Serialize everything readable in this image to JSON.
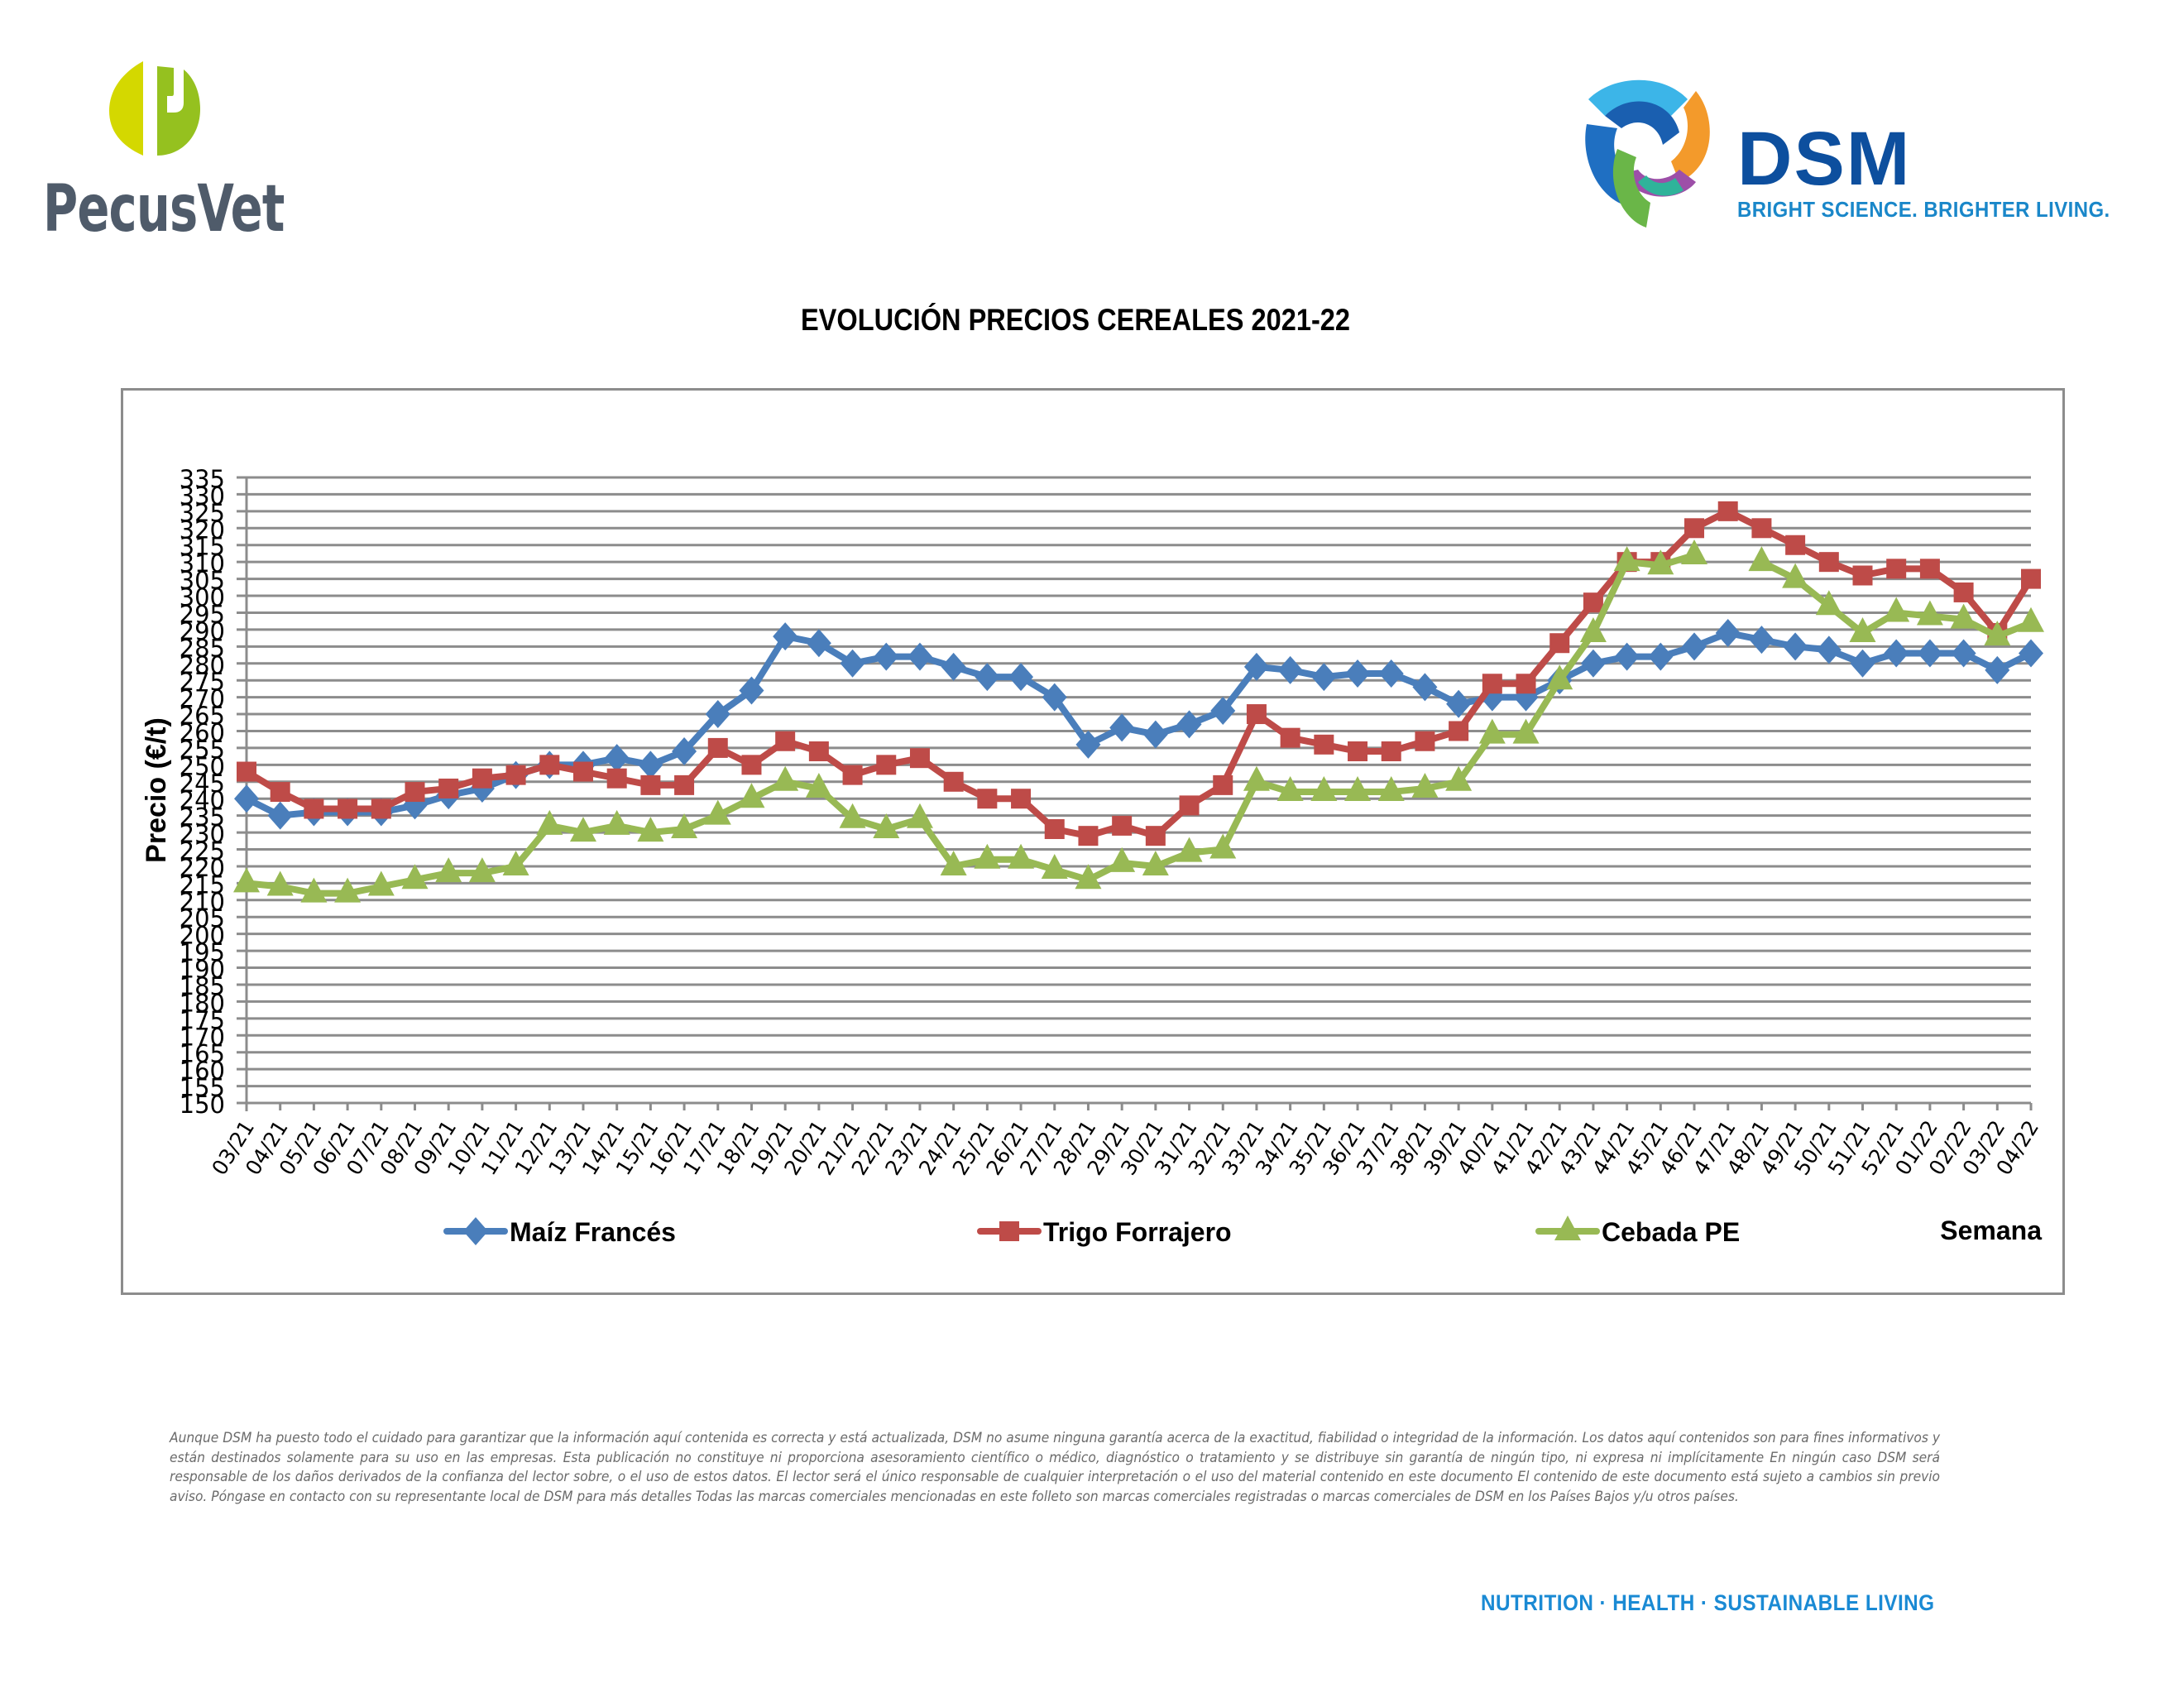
{
  "header": {
    "left_logo": {
      "brand": "PecusVet",
      "icon": "pecusvet-p-icon",
      "colors": {
        "left": "#d4d800",
        "right": "#95c11f",
        "text": "#4f5b6a"
      }
    },
    "right_logo": {
      "brand": "DSM",
      "tagline": "BRIGHT SCIENCE. BRIGHTER LIVING.",
      "icon": "dsm-swirl-icon",
      "colors": {
        "brand": "#0d4f9e",
        "tagline": "#1a87c9"
      }
    }
  },
  "footer": {
    "disclaimer": "Aunque DSM ha puesto todo el cuidado para garantizar que la información aquí contenida es correcta y está actualizada, DSM no asume ninguna garantía acerca de la exactitud, fiabilidad o integridad de la información. Los datos aquí contenidos son para fines informativos y están destinados solamente para su uso en las empresas. Esta publicación no constituye ni proporciona asesoramiento científico o médico, diagnóstico o tratamiento y se distribuye sin garantía de ningún tipo, ni expresa ni implícitamente En ningún caso DSM será responsable de los daños derivados de la confianza del lector sobre, o el uso de estos datos. El lector será el único responsable de cualquier interpretación o el uso del material contenido en este documento El contenido de este documento está sujeto a cambios sin previo aviso. Póngase en contacto con su representante local de DSM para más detalles Todas las marcas comerciales mencionadas en este folleto son marcas comerciales registradas o marcas comerciales de DSM en los Países Bajos y/u otros países.",
    "tagline": "NUTRITION  ·  HEALTH  ·  SUSTAINABLE LIVING"
  },
  "chart_data": {
    "type": "line",
    "title": "EVOLUCIÓN PRECIOS CEREALES 2021-22",
    "xlabel": "Semana",
    "ylabel": "Precio (€/t)",
    "ylim": [
      150,
      335
    ],
    "ytick_step": 5,
    "grid": true,
    "legend_position": "bottom",
    "categories": [
      "03/21",
      "04/21",
      "05/21",
      "06/21",
      "07/21",
      "08/21",
      "09/21",
      "10/21",
      "11/21",
      "12/21",
      "13/21",
      "14/21",
      "15/21",
      "16/21",
      "17/21",
      "18/21",
      "19/21",
      "20/21",
      "21/21",
      "22/21",
      "23/21",
      "24/21",
      "25/21",
      "26/21",
      "27/21",
      "28/21",
      "29/21",
      "30/21",
      "31/21",
      "32/21",
      "33/21",
      "34/21",
      "35/21",
      "36/21",
      "37/21",
      "38/21",
      "39/21",
      "40/21",
      "41/21",
      "42/21",
      "43/21",
      "44/21",
      "45/21",
      "46/21",
      "47/21",
      "48/21",
      "49/21",
      "50/21",
      "51/21",
      "52/21",
      "01/22",
      "02/22",
      "03/22",
      "04/22"
    ],
    "series": [
      {
        "name": "Maíz Francés",
        "color": "#4a7ebb",
        "marker": "diamond",
        "values": [
          240,
          235,
          236,
          236,
          236,
          238,
          241,
          243,
          247,
          250,
          250,
          252,
          250,
          254,
          265,
          272,
          288,
          286,
          280,
          282,
          282,
          279,
          276,
          276,
          270,
          256,
          261,
          259,
          262,
          266,
          279,
          278,
          276,
          277,
          277,
          273,
          268,
          270,
          270,
          275,
          280,
          282,
          282,
          285,
          289,
          287,
          285,
          284,
          280,
          283,
          283,
          283,
          278,
          283
        ]
      },
      {
        "name": "Trigo Forrajero",
        "color": "#be4b48",
        "marker": "square",
        "values": [
          248,
          242,
          237,
          237,
          237,
          242,
          243,
          246,
          247,
          250,
          248,
          246,
          244,
          244,
          255,
          250,
          257,
          254,
          247,
          250,
          252,
          245,
          240,
          240,
          231,
          229,
          232,
          229,
          238,
          244,
          265,
          258,
          256,
          254,
          254,
          257,
          260,
          274,
          274,
          286,
          298,
          310,
          310,
          320,
          325,
          320,
          315,
          310,
          306,
          308,
          308,
          301,
          289,
          305
        ]
      },
      {
        "name": "Cebada PE",
        "color": "#98b954",
        "marker": "triangle",
        "values": [
          215,
          214,
          212,
          212,
          214,
          216,
          218,
          218,
          220,
          232,
          230,
          232,
          230,
          231,
          235,
          240,
          245,
          243,
          234,
          231,
          234,
          220,
          222,
          222,
          219,
          216,
          221,
          220,
          224,
          225,
          245,
          242,
          242,
          242,
          242,
          243,
          245,
          259,
          259,
          275,
          289,
          310,
          309,
          312,
          null,
          310,
          305,
          297,
          289,
          295,
          294,
          293,
          288,
          292
        ]
      }
    ]
  }
}
